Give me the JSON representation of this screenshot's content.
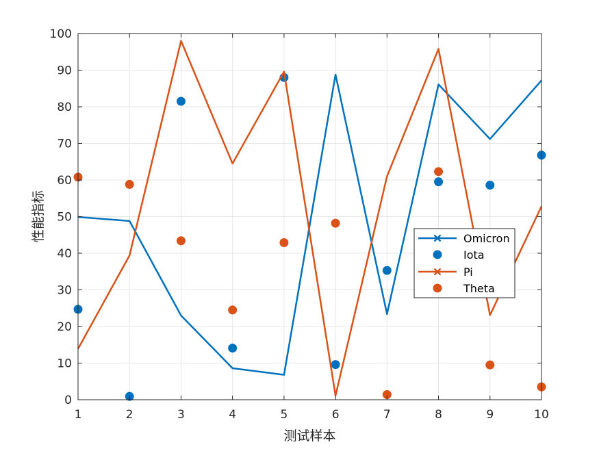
{
  "chart_data": {
    "type": "line",
    "xlabel": "测试样本",
    "ylabel": "性能指标",
    "xlim": [
      1,
      10
    ],
    "ylim": [
      0,
      100
    ],
    "x": [
      1,
      2,
      3,
      4,
      5,
      6,
      7,
      8,
      9,
      10
    ],
    "xticks": [
      "1",
      "2",
      "3",
      "4",
      "5",
      "6",
      "7",
      "8",
      "9",
      "10"
    ],
    "yticks": [
      "0",
      "10",
      "20",
      "30",
      "40",
      "50",
      "60",
      "70",
      "80",
      "90",
      "100"
    ],
    "grid": true,
    "legend_position": "center-right",
    "series": [
      {
        "name": "Omicron",
        "style": "line",
        "marker": "x",
        "color": "#0072BD",
        "values": [
          49.9,
          48.8,
          23.0,
          8.6,
          6.8,
          88.8,
          23.4,
          86.1,
          71.2,
          87.2
        ]
      },
      {
        "name": "Iota",
        "style": "markers",
        "marker": "o",
        "color": "#0072BD",
        "values": [
          24.7,
          0.9,
          81.5,
          14.1,
          88.0,
          9.6,
          35.3,
          59.5,
          58.6,
          66.8
        ]
      },
      {
        "name": "Pi",
        "style": "line",
        "marker": "x",
        "color": "#D95319",
        "values": [
          13.9,
          39.4,
          98.0,
          64.5,
          89.6,
          1.1,
          61.0,
          95.8,
          23.1,
          52.8
        ]
      },
      {
        "name": "Theta",
        "style": "markers",
        "marker": "o",
        "color": "#D95319",
        "values": [
          60.8,
          58.8,
          43.4,
          24.5,
          42.9,
          48.2,
          1.4,
          62.3,
          9.5,
          3.5
        ]
      }
    ]
  }
}
